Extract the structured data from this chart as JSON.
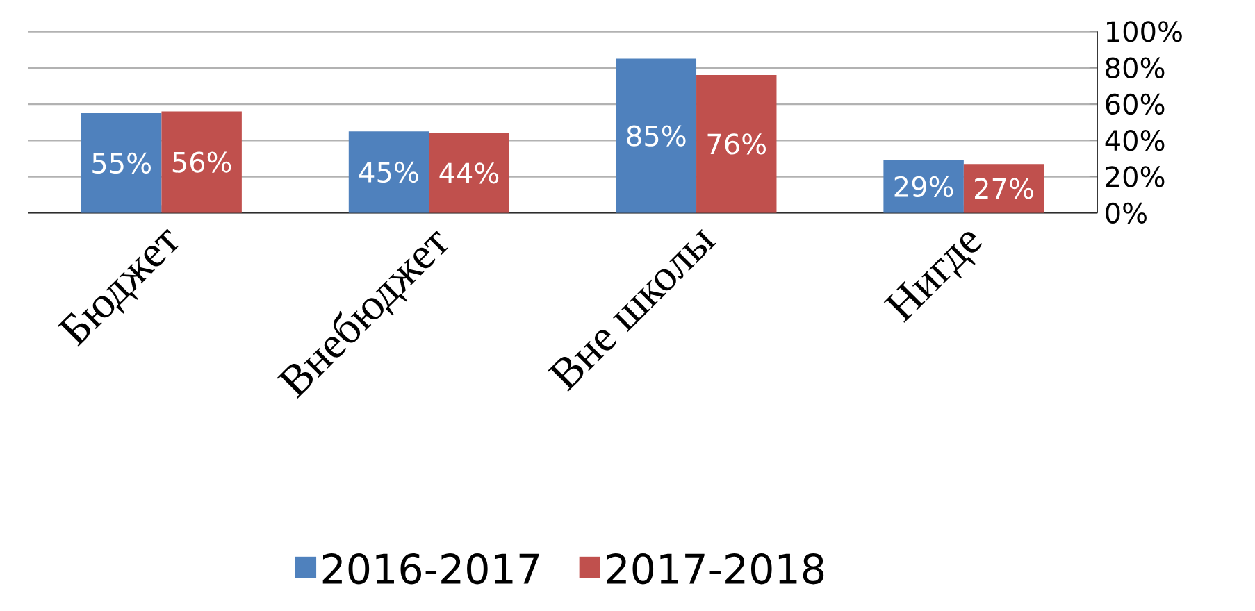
{
  "chart_data": {
    "type": "bar",
    "categories": [
      "Бюджет",
      "Внебюджет",
      "Вне школы",
      "Нигде"
    ],
    "series": [
      {
        "name": "2016-2017",
        "color": "#4f81bd",
        "values": [
          55,
          45,
          85,
          29
        ],
        "value_labels": [
          "55%",
          "45%",
          "85%",
          "29%"
        ]
      },
      {
        "name": "2017-2018",
        "color": "#c0504d",
        "values": [
          56,
          44,
          76,
          27
        ],
        "value_labels": [
          "56%",
          "44%",
          "76%",
          "27%"
        ]
      }
    ],
    "ylim": [
      0,
      100
    ],
    "yticks": [
      {
        "value": 0,
        "label": "0%"
      },
      {
        "value": 20,
        "label": "20%"
      },
      {
        "value": 40,
        "label": "40%"
      },
      {
        "value": 60,
        "label": "60%"
      },
      {
        "value": 80,
        "label": "80%"
      },
      {
        "value": 100,
        "label": "100%"
      }
    ],
    "grid": "y",
    "legend": "bottom"
  }
}
